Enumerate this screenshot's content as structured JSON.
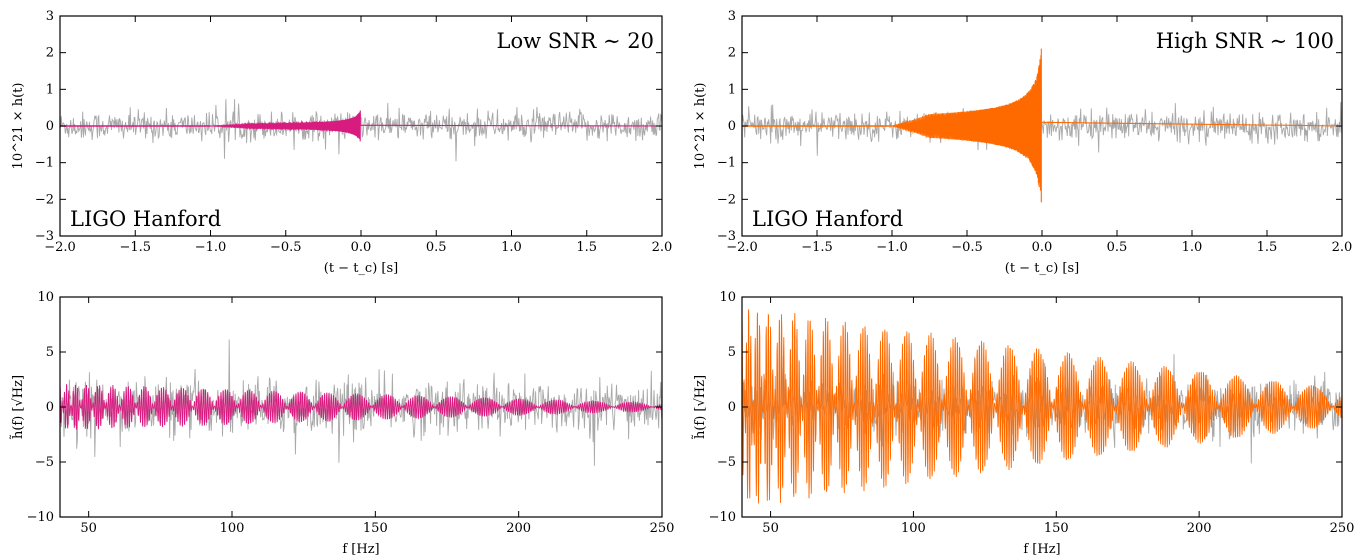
{
  "colors": {
    "pink": "#d81b7f",
    "orange": "#ff6a00",
    "noise": "#a9a9a9"
  },
  "chart_data": [
    {
      "type": "line",
      "id": "time-low",
      "xlabel": "(t − t_c) [s]",
      "ylabel": "10^21 × h(t)",
      "xlim": [
        -2.0,
        2.0
      ],
      "ylim": [
        -3,
        3
      ],
      "xticks": [
        -2.0,
        -1.5,
        -1.0,
        -0.5,
        0.0,
        0.5,
        1.0,
        1.5,
        2.0
      ],
      "xtick_labels": [
        "−2.0",
        "−1.5",
        "−1.0",
        "−0.5",
        "0.0",
        "0.5",
        "1.0",
        "1.5",
        "2.0"
      ],
      "yticks": [
        -3,
        -2,
        -1,
        0,
        1,
        2,
        3
      ],
      "ytick_labels": [
        "−3",
        "−2",
        "−1",
        "0",
        "1",
        "2",
        "3"
      ],
      "annotations": [
        "Low SNR ∼ 20",
        "LIGO Hanford"
      ],
      "series": [
        {
          "role": "noisy data",
          "color": "#a9a9a9",
          "noise_amplitude": 0.35
        },
        {
          "role": "signal",
          "color": "#d81b7f",
          "peak_amplitude": 0.48,
          "merger_time": 0.0,
          "start_time": -1.0
        }
      ]
    },
    {
      "type": "line",
      "id": "time-high",
      "xlabel": "(t − t_c) [s]",
      "ylabel": "10^21 × h(t)",
      "xlim": [
        -2.0,
        2.0
      ],
      "ylim": [
        -3,
        3
      ],
      "xticks": [
        -2.0,
        -1.5,
        -1.0,
        -0.5,
        0.0,
        0.5,
        1.0,
        1.5,
        2.0
      ],
      "xtick_labels": [
        "−2.0",
        "−1.5",
        "−1.0",
        "−0.5",
        "0.0",
        "0.5",
        "1.0",
        "1.5",
        "2.0"
      ],
      "yticks": [
        -3,
        -2,
        -1,
        0,
        1,
        2,
        3
      ],
      "ytick_labels": [
        "−3",
        "−2",
        "−1",
        "0",
        "1",
        "2",
        "3"
      ],
      "annotations": [
        "High SNR ∼ 100",
        "LIGO Hanford"
      ],
      "series": [
        {
          "role": "noisy data",
          "color": "#a9a9a9",
          "noise_amplitude": 0.35
        },
        {
          "role": "signal",
          "color": "#ff6a00",
          "peak_amplitude": 2.4,
          "merger_time": 0.0,
          "start_time": -1.0
        }
      ]
    },
    {
      "type": "line",
      "id": "freq-low",
      "xlabel": "f [Hz]",
      "ylabel": "h̃(f) [√Hz]",
      "xlim": [
        40,
        250
      ],
      "ylim": [
        -10,
        10
      ],
      "xticks": [
        50,
        100,
        150,
        200,
        250
      ],
      "xtick_labels": [
        "50",
        "100",
        "150",
        "200",
        "250"
      ],
      "yticks": [
        -10,
        -5,
        0,
        5,
        10
      ],
      "ytick_labels": [
        "−10",
        "−5",
        "0",
        "5",
        "10"
      ],
      "annotations": [],
      "series": [
        {
          "role": "noisy data",
          "color": "#a9a9a9",
          "noise_amplitude": 2.2
        },
        {
          "role": "signal",
          "color": "#d81b7f",
          "envelope": {
            "start": 2.0,
            "end": 0.7
          }
        }
      ]
    },
    {
      "type": "line",
      "id": "freq-high",
      "xlabel": "f [Hz]",
      "ylabel": "h̃(f) [√Hz]",
      "xlim": [
        40,
        250
      ],
      "ylim": [
        -10,
        10
      ],
      "xticks": [
        50,
        100,
        150,
        200,
        250
      ],
      "xtick_labels": [
        "50",
        "100",
        "150",
        "200",
        "250"
      ],
      "yticks": [
        -10,
        -5,
        0,
        5,
        10
      ],
      "ytick_labels": [
        "−10",
        "−5",
        "0",
        "5",
        "10"
      ],
      "annotations": [],
      "series": [
        {
          "role": "noisy data",
          "color": "#a9a9a9",
          "noise_amplitude": 2.2
        },
        {
          "role": "signal",
          "color": "#ff6a00",
          "envelope": {
            "start": 8.5,
            "end": 3.2
          }
        }
      ]
    }
  ]
}
